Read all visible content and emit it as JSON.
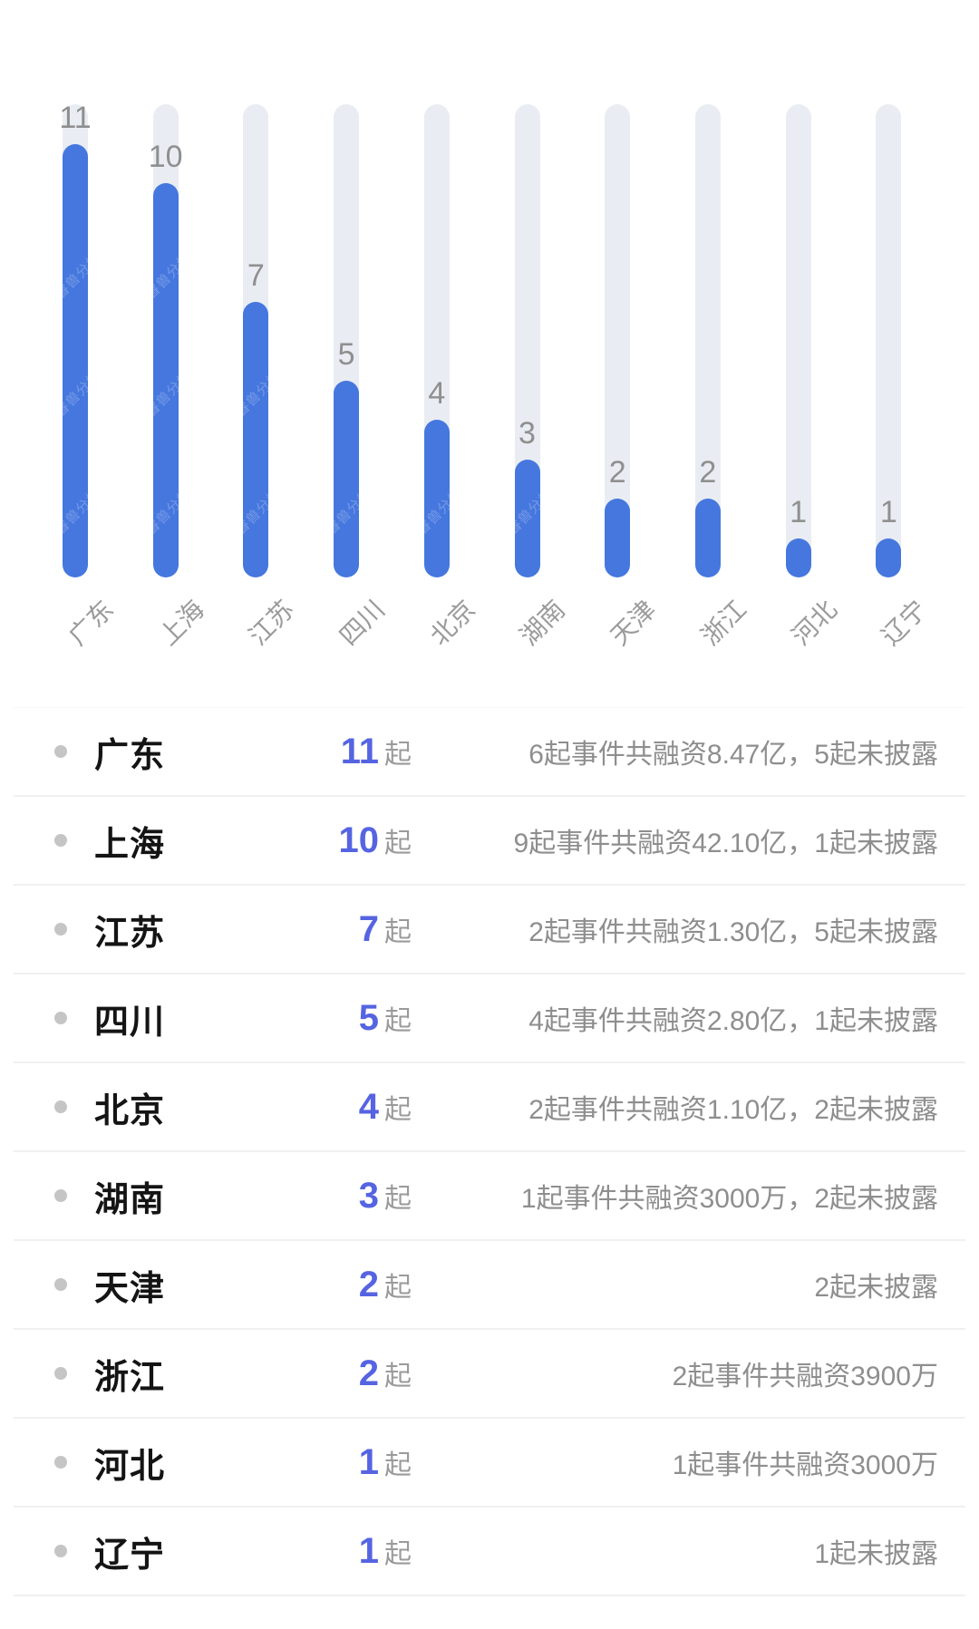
{
  "chart_data": {
    "type": "bar",
    "title": "",
    "xlabel": "",
    "ylabel": "",
    "categories": [
      "广东",
      "上海",
      "江苏",
      "四川",
      "北京",
      "湖南",
      "天津",
      "浙江",
      "河北",
      "辽宁"
    ],
    "values": [
      11,
      10,
      7,
      5,
      4,
      3,
      2,
      2,
      1,
      1
    ],
    "ylim": [
      0,
      12
    ],
    "grid": false,
    "legend": false,
    "bar_color": "#4577DE",
    "track_color": "#E9EDF3",
    "value_label_color": "#8F8F8F",
    "axis_label_color": "#9B9B9B",
    "watermark": "睿兽分析"
  },
  "list": {
    "rows": [
      {
        "name": "广东",
        "count": "11",
        "suffix": "起",
        "detail": "6起事件共融资8.47亿，5起未披露"
      },
      {
        "name": "上海",
        "count": "10",
        "suffix": "起",
        "detail": "9起事件共融资42.10亿，1起未披露"
      },
      {
        "name": "江苏",
        "count": "7",
        "suffix": "起",
        "detail": "2起事件共融资1.30亿，5起未披露"
      },
      {
        "name": "四川",
        "count": "5",
        "suffix": "起",
        "detail": "4起事件共融资2.80亿，1起未披露"
      },
      {
        "name": "北京",
        "count": "4",
        "suffix": "起",
        "detail": "2起事件共融资1.10亿，2起未披露"
      },
      {
        "name": "湖南",
        "count": "3",
        "suffix": "起",
        "detail": "1起事件共融资3000万，2起未披露"
      },
      {
        "name": "天津",
        "count": "2",
        "suffix": "起",
        "detail": "2起未披露"
      },
      {
        "name": "浙江",
        "count": "2",
        "suffix": "起",
        "detail": "2起事件共融资3900万"
      },
      {
        "name": "河北",
        "count": "1",
        "suffix": "起",
        "detail": "1起事件共融资3000万"
      },
      {
        "name": "辽宁",
        "count": "1",
        "suffix": "起",
        "detail": "1起未披露"
      }
    ]
  }
}
